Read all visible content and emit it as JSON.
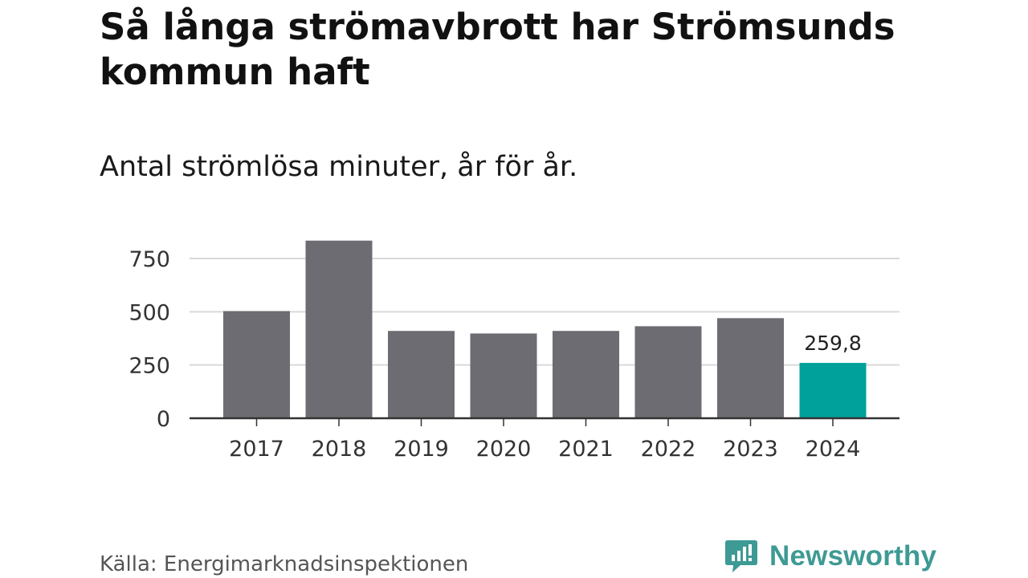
{
  "title": "Så långa strömavbrott har Strömsunds kommun haft",
  "subtitle": "Antal strömlösa minuter, år för år.",
  "source": "Källa: Energimarknadsinspektionen",
  "brand": {
    "name": "Newsworthy",
    "icon": "bar-chart-speech-bubble-icon",
    "color": "#3e9a94"
  },
  "colors": {
    "bar": "#6d6c72",
    "highlight": "#00a19a",
    "grid": "#d9d9d9",
    "axis": "#333333"
  },
  "chart_data": {
    "type": "bar",
    "categories": [
      "2017",
      "2018",
      "2019",
      "2020",
      "2021",
      "2022",
      "2023",
      "2024"
    ],
    "values": [
      503,
      834,
      410,
      398,
      410,
      432,
      470,
      259.8
    ],
    "highlight_index": 7,
    "data_labels": {
      "7": "259,8"
    },
    "ylim": [
      0,
      850
    ],
    "yticks": [
      0,
      250,
      500,
      750
    ],
    "ytick_labels": [
      "0",
      "250",
      "500",
      "750"
    ],
    "grid": true,
    "xlabel": "",
    "ylabel": ""
  }
}
